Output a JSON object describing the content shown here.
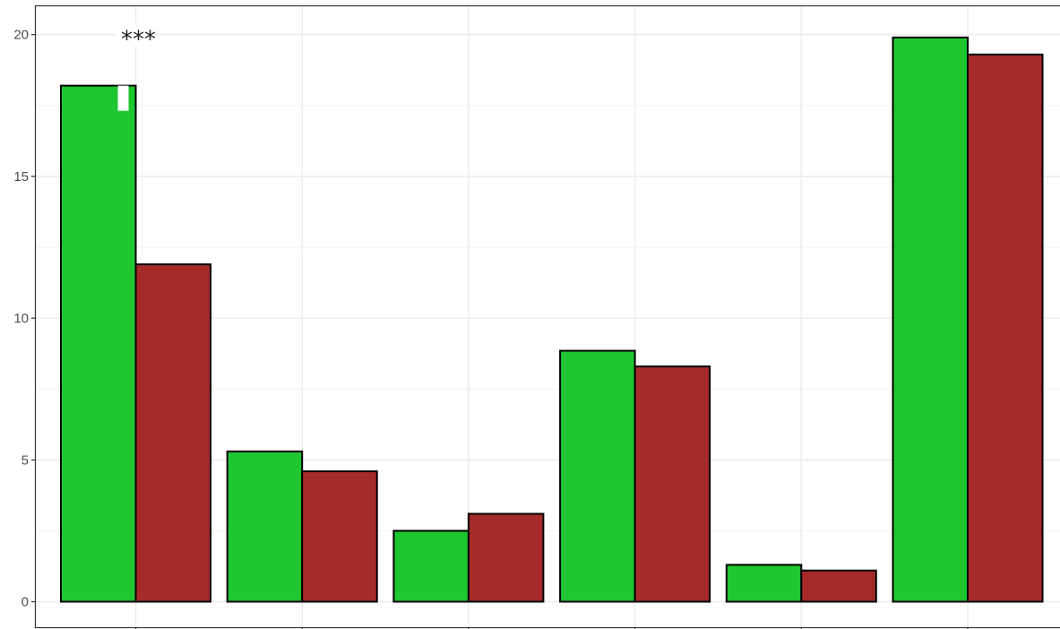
{
  "chart_data": {
    "type": "bar",
    "categories": [
      "",
      "",
      "",
      "",
      "",
      ""
    ],
    "series": [
      {
        "color": "#1fc62f",
        "values": [
          18.2,
          5.3,
          2.5,
          8.85,
          1.3,
          19.9
        ]
      },
      {
        "color": "#a52a2a",
        "values": [
          11.9,
          4.6,
          3.1,
          8.3,
          1.1,
          19.3
        ]
      }
    ],
    "title": "",
    "xlabel": "",
    "ylabel": "",
    "ylim": [
      -0.9,
      21.0
    ],
    "yticks": [
      0,
      5,
      10,
      15,
      20
    ],
    "ytick_labels": [
      "0",
      "5",
      "10",
      "15",
      "20"
    ],
    "grid": true,
    "annotations": [
      {
        "text": "***",
        "category_index": 0,
        "y": 20.0
      }
    ]
  }
}
